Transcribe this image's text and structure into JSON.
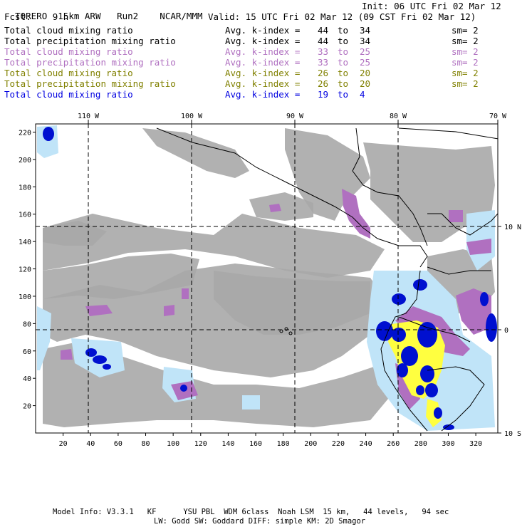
{
  "header": {
    "model": "TORERO",
    "resolution": "15km ARW",
    "run": "Run2",
    "org": "NCAR/MMM",
    "init": "Init: 06 UTC Fri 02 Mar 12",
    "fcst_label": "Fcst:",
    "fcst_value": "9 h",
    "valid": "Valid: 15 UTC Fri 02 Mar 12 (09 CST Fri 02 Mar 12)"
  },
  "legend": [
    {
      "field": "Total cloud mixing ratio",
      "avg": "Avg. k-index =",
      "k1": "44",
      "to": "to",
      "k2": "34",
      "sm": "sm= 2",
      "color": "#000000"
    },
    {
      "field": "Total precipitation mixing ratio",
      "avg": "Avg. k-index =",
      "k1": "44",
      "to": "to",
      "k2": "34",
      "sm": "sm= 2",
      "color": "#000000"
    },
    {
      "field": "Total cloud mixing ratio",
      "avg": "Avg. k-index =",
      "k1": "33",
      "to": "to",
      "k2": "25",
      "sm": "sm= 2",
      "color": "#b070c0"
    },
    {
      "field": "Total precipitation mixing ratio",
      "avg": "Avg. k-index =",
      "k1": "33",
      "to": "to",
      "k2": "25",
      "sm": "sm= 2",
      "color": "#b070c0"
    },
    {
      "field": "Total cloud mixing ratio",
      "avg": "Avg. k-index =",
      "k1": "26",
      "to": "to",
      "k2": "20",
      "sm": "sm= 2",
      "color": "#808000"
    },
    {
      "field": "Total precipitation mixing ratio",
      "avg": "Avg. k-index =",
      "k1": "26",
      "to": "to",
      "k2": "20",
      "sm": "sm= 2",
      "color": "#808000"
    },
    {
      "field": "Total cloud mixing ratio",
      "avg": "Avg. k-index =",
      "k1": "19",
      "to": "to",
      "k2": "4",
      "sm": "",
      "color": "#0000e0"
    }
  ],
  "axes": {
    "lon_labels": [
      "110 W",
      "100 W",
      "90 W",
      "80 W",
      "70 W"
    ],
    "lat_labels": [
      "10 N",
      "0",
      "10 S"
    ],
    "y_ticks": [
      "20",
      "40",
      "60",
      "80",
      "100",
      "120",
      "140",
      "160",
      "180",
      "200",
      "220"
    ],
    "x_ticks": [
      "20",
      "40",
      "60",
      "80",
      "100",
      "120",
      "140",
      "160",
      "180",
      "200",
      "220",
      "240",
      "260",
      "280",
      "300",
      "320"
    ]
  },
  "footer": {
    "line1": "Model Info: V3.3.1   KF      YSU PBL  WDM 6class  Noah LSM  15 km,   44 levels,   94 sec",
    "line2": "LW: Godd SW: Goddard DIFF: simple KM: 2D Smagor"
  },
  "colors": {
    "gray_cloud": "#a8a8a8",
    "purple": "#b070c0",
    "yellow": "#ffff40",
    "blue": "#0010d0",
    "light_blue": "#c0e4f8"
  }
}
